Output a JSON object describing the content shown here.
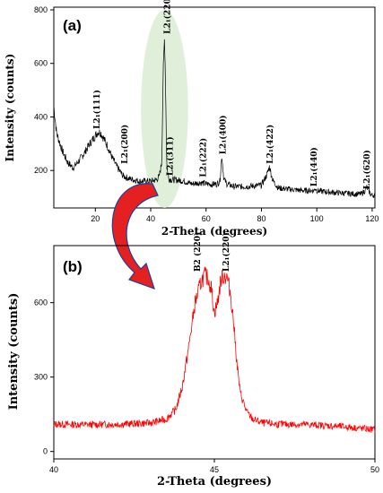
{
  "colors": {
    "panel_a_line": "#000000",
    "panel_b_line": "#ff0000",
    "highlight": "#d9ecd3",
    "arrow": "#e52020"
  },
  "chart_data": [
    {
      "type": "line",
      "panel_label": "(a)",
      "xlabel": "2-Theta (degrees)",
      "ylabel": "Intensity (counts)",
      "xlim": [
        5,
        121
      ],
      "ylim": [
        60,
        810
      ],
      "xticks": [
        20,
        40,
        60,
        80,
        100,
        120
      ],
      "yticks": [
        200,
        400,
        600,
        800
      ],
      "highlight": {
        "center_x": 45,
        "center_y": 430,
        "span_x": 17,
        "span_y": 740
      },
      "series": [
        {
          "values_x": [
            5,
            6,
            8,
            10,
            12,
            14,
            16,
            18,
            20,
            21,
            22,
            24,
            26,
            28,
            30,
            32,
            34,
            36,
            38,
            40,
            42,
            43,
            44,
            44.5,
            45,
            45.3,
            45.8,
            46.5,
            47.5,
            49,
            52,
            55,
            58,
            60,
            62,
            64,
            65,
            65.7,
            66.4,
            67.5,
            70,
            75,
            80,
            82,
            82.9,
            84,
            86,
            90,
            95,
            99,
            99.5,
            100,
            102,
            106,
            110,
            114,
            116,
            117.5,
            118,
            119.5,
            120
          ],
          "values_y": [
            440,
            340,
            275,
            230,
            210,
            235,
            265,
            300,
            330,
            345,
            340,
            300,
            250,
            210,
            180,
            170,
            165,
            160,
            160,
            160,
            165,
            175,
            230,
            560,
            700,
            560,
            220,
            170,
            165,
            165,
            160,
            150,
            155,
            150,
            148,
            150,
            160,
            255,
            170,
            150,
            140,
            140,
            145,
            185,
            215,
            165,
            135,
            130,
            125,
            125,
            135,
            125,
            122,
            118,
            115,
            112,
            112,
            125,
            138,
            110,
            108
          ]
        }
      ],
      "annotations": [
        {
          "text": "L2₁(111)",
          "x": 21.5,
          "y": 355
        },
        {
          "text": "L2₁(200)",
          "x": 31.5,
          "y": 225
        },
        {
          "text": "L2₁(220)",
          "x": 47,
          "y": 710
        },
        {
          "text": "L2₁(311)",
          "x": 48,
          "y": 180
        },
        {
          "text": "L2₁(222)",
          "x": 60,
          "y": 175
        },
        {
          "text": "L2₁(400)",
          "x": 67,
          "y": 260
        },
        {
          "text": "L2₁(422)",
          "x": 84,
          "y": 225
        },
        {
          "text": "L2₁(440)",
          "x": 100,
          "y": 140
        },
        {
          "text": "L2₁(620)",
          "x": 119,
          "y": 130
        }
      ]
    },
    {
      "type": "line",
      "panel_label": "(b)",
      "xlabel": "2-Theta (degrees)",
      "ylabel": "Intensity (counts)",
      "xlim": [
        40,
        50
      ],
      "ylim": [
        -30,
        830
      ],
      "xticks": [
        40,
        45,
        50
      ],
      "yticks": [
        0,
        300,
        600
      ],
      "series": [
        {
          "values_x": [
            40,
            41,
            42,
            43,
            43.5,
            43.8,
            44.0,
            44.2,
            44.4,
            44.6,
            44.7,
            44.8,
            44.9,
            45.0,
            45.1,
            45.2,
            45.3,
            45.4,
            45.5,
            45.6,
            45.7,
            45.8,
            46.0,
            46.2,
            46.5,
            47,
            48,
            49,
            50
          ],
          "values_y": [
            110,
            108,
            110,
            115,
            130,
            170,
            260,
            420,
            600,
            690,
            710,
            700,
            660,
            560,
            600,
            690,
            710,
            700,
            640,
            520,
            360,
            240,
            160,
            130,
            115,
            110,
            108,
            100,
            88
          ]
        }
      ],
      "annotations": [
        {
          "text": "B2 (220)",
          "x": 44.55,
          "y": 725
        },
        {
          "text": "L2₁(220)",
          "x": 45.45,
          "y": 725
        }
      ]
    }
  ]
}
